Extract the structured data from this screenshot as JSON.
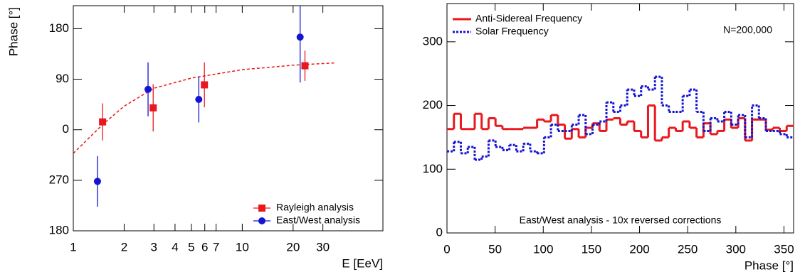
{
  "chart_data": [
    {
      "type": "scatter",
      "log_x": true,
      "xlabel": "E [EeV]",
      "ylabel": "Phase [°]",
      "xlim": [
        1,
        68
      ],
      "xticks": [
        1,
        2,
        3,
        4,
        5,
        6,
        7,
        10,
        20,
        30
      ],
      "ylim": [
        -180,
        221
      ],
      "yticks": [
        {
          "value": -180,
          "label": "180"
        },
        {
          "value": -90,
          "label": "270"
        },
        0,
        90,
        180
      ],
      "legend": "lower right",
      "series": [
        {
          "name": "Rayleigh analysis",
          "color": "#e8191e",
          "marker": "square",
          "x": [
            1.49,
            2.97,
            5.97,
            23.5
          ],
          "values": [
            14,
            39,
            80,
            114
          ],
          "errors": [
            33,
            42,
            40,
            27
          ]
        },
        {
          "name": "East/West analysis",
          "color": "#1414d2",
          "marker": "circle",
          "x": [
            1.39,
            2.77,
            5.53,
            22
          ],
          "values": [
            -92,
            72,
            54,
            165
          ],
          "errors": [
            45,
            48,
            41,
            81
          ]
        }
      ],
      "fit": {
        "color": "#e8191e",
        "style": "dashed",
        "x": [
          1,
          1.5,
          2,
          3,
          5,
          10,
          20,
          35
        ],
        "values": [
          -42,
          10,
          42,
          74,
          92,
          107,
          115,
          119
        ]
      }
    },
    {
      "type": "histogram",
      "xlabel": "Phase [°]",
      "xlim": [
        0,
        360
      ],
      "xticks": [
        0,
        50,
        100,
        150,
        200,
        250,
        300,
        350
      ],
      "ylim": [
        0,
        360
      ],
      "yticks": [
        0,
        100,
        200,
        300
      ],
      "legend": "upper left",
      "annotations": [
        "N=200,000",
        "East/West analysis - 10x reversed corrections"
      ],
      "bins": [
        0,
        7.2,
        14.4,
        21.6,
        28.8,
        36,
        43.2,
        50.4,
        57.6,
        64.8,
        72,
        79.2,
        86.4,
        93.6,
        100.8,
        108,
        115.2,
        122.4,
        129.6,
        136.8,
        144,
        151.2,
        158.4,
        165.6,
        172.8,
        180,
        187.2,
        194.4,
        201.6,
        208.8,
        216,
        223.2,
        230.4,
        237.6,
        244.8,
        252,
        259.2,
        266.4,
        273.6,
        280.8,
        288,
        295.2,
        302.4,
        309.6,
        316.8,
        324,
        331.2,
        338.4,
        345.6,
        352.8,
        360
      ],
      "series": [
        {
          "name": "Anti-Sidereal Frequency",
          "color": "#e8191e",
          "style": "solid",
          "values": [
            163,
            187,
            163,
            163,
            187,
            163,
            180,
            168,
            163,
            163,
            163,
            165,
            165,
            178,
            175,
            185,
            170,
            148,
            163,
            150,
            165,
            172,
            160,
            178,
            180,
            170,
            175,
            160,
            150,
            200,
            145,
            150,
            165,
            160,
            175,
            165,
            150,
            172,
            155,
            160,
            178,
            165,
            180,
            145,
            178,
            178,
            162,
            165,
            160,
            168
          ]
        },
        {
          "name": "Solar Frequency",
          "color": "#1414d2",
          "style": "dotted",
          "values": [
            128,
            143,
            125,
            135,
            115,
            120,
            145,
            135,
            130,
            138,
            128,
            140,
            128,
            125,
            150,
            170,
            160,
            160,
            170,
            185,
            155,
            170,
            175,
            205,
            190,
            200,
            225,
            215,
            230,
            225,
            245,
            200,
            190,
            190,
            215,
            225,
            190,
            160,
            180,
            175,
            190,
            170,
            185,
            150,
            200,
            180,
            160,
            160,
            155,
            150
          ]
        }
      ]
    }
  ]
}
